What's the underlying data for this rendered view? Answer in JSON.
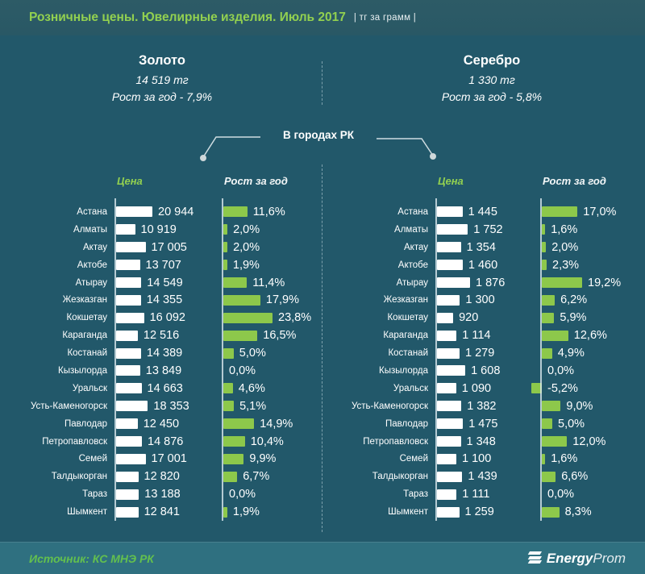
{
  "title": {
    "main": "Розничные цены. Ювелирные изделия. Июль 2017",
    "unit": "| тг за грамм |"
  },
  "center_label": "В городах РК",
  "colors": {
    "background": "#22586A",
    "accent_green": "#8DC84B",
    "title_green": "#92D050",
    "bar_white": "#FFFFFF",
    "footer_bg": "#2F7080"
  },
  "footer": {
    "source": "Источник: КС МНЭ РК",
    "logo_bold": "Energy",
    "logo_light": "Prom",
    "logo_icon": "energyprom-e-icon"
  },
  "chart_data": [
    {
      "type": "bar",
      "title": "Золото",
      "avg_price_label": "14 519 тг",
      "avg_growth_label": "Рост за год - 7,9%",
      "col_price_label": "Цена",
      "col_growth_label": "Рост за год",
      "legend_position": "column-headers",
      "grid": false,
      "price_axis_max": 20944,
      "growth_axis_range": [
        0,
        23.8
      ],
      "categories": [
        "Астана",
        "Алматы",
        "Актау",
        "Актобе",
        "Атырау",
        "Жезказган",
        "Кокшетау",
        "Караганда",
        "Костанай",
        "Кызылорда",
        "Уральск",
        "Усть-Каменогорск",
        "Павлодар",
        "Петропавловск",
        "Семей",
        "Талдыкорган",
        "Тараз",
        "Шымкент"
      ],
      "series": [
        {
          "name": "Цена, тг за грамм",
          "values": [
            20944,
            10919,
            17005,
            13707,
            14549,
            14355,
            16092,
            12516,
            14389,
            13849,
            14663,
            18353,
            12450,
            14876,
            17001,
            12820,
            13188,
            12841
          ]
        },
        {
          "name": "Рост за год, %",
          "values": [
            11.6,
            2.0,
            2.0,
            1.9,
            11.4,
            17.9,
            23.8,
            16.5,
            5.0,
            0.0,
            4.6,
            5.1,
            14.9,
            10.4,
            9.9,
            6.7,
            0.0,
            1.9
          ]
        }
      ],
      "price_labels": [
        "20 944",
        "10 919",
        "17 005",
        "13 707",
        "14 549",
        "14 355",
        "16 092",
        "12 516",
        "14 389",
        "13 849",
        "14 663",
        "18 353",
        "12 450",
        "14 876",
        "17 001",
        "12 820",
        "13 188",
        "12 841"
      ],
      "growth_labels": [
        "11,6%",
        "2,0%",
        "2,0%",
        "1,9%",
        "11,4%",
        "17,9%",
        "23,8%",
        "16,5%",
        "5,0%",
        "0,0%",
        "4,6%",
        "5,1%",
        "14,9%",
        "10,4%",
        "9,9%",
        "6,7%",
        "0,0%",
        "1,9%"
      ]
    },
    {
      "type": "bar",
      "title": "Серебро",
      "avg_price_label": "1 330 тг",
      "avg_growth_label": "Рост за год - 5,8%",
      "col_price_label": "Цена",
      "col_growth_label": "Рост за год",
      "legend_position": "column-headers",
      "grid": false,
      "price_axis_max": 1876,
      "growth_axis_range": [
        -5.2,
        19.2
      ],
      "categories": [
        "Астана",
        "Алматы",
        "Актау",
        "Актобе",
        "Атырау",
        "Жезказган",
        "Кокшетау",
        "Караганда",
        "Костанай",
        "Кызылорда",
        "Уральск",
        "Усть-Каменогорск",
        "Павлодар",
        "Петропавловск",
        "Семей",
        "Талдыкорган",
        "Тараз",
        "Шымкент"
      ],
      "series": [
        {
          "name": "Цена, тг за грамм",
          "values": [
            1445,
            1752,
            1354,
            1460,
            1876,
            1300,
            920,
            1114,
            1279,
            1608,
            1090,
            1382,
            1475,
            1348,
            1100,
            1439,
            1111,
            1259
          ]
        },
        {
          "name": "Рост за год, %",
          "values": [
            17.0,
            1.6,
            2.0,
            2.3,
            19.2,
            6.2,
            5.9,
            12.6,
            4.9,
            0.0,
            -5.2,
            9.0,
            5.0,
            12.0,
            1.6,
            6.6,
            0.0,
            8.3
          ]
        }
      ],
      "price_labels": [
        "1 445",
        "1 752",
        "1 354",
        "1 460",
        "1 876",
        "1 300",
        "920",
        "1 114",
        "1 279",
        "1 608",
        "1 090",
        "1 382",
        "1 475",
        "1 348",
        "1 100",
        "1 439",
        "1 111",
        "1 259"
      ],
      "growth_labels": [
        "17,0%",
        "1,6%",
        "2,0%",
        "2,3%",
        "19,2%",
        "6,2%",
        "5,9%",
        "12,6%",
        "4,9%",
        "0,0%",
        "-5,2%",
        "9,0%",
        "5,0%",
        "12,0%",
        "1,6%",
        "6,6%",
        "0,0%",
        "8,3%"
      ]
    }
  ]
}
